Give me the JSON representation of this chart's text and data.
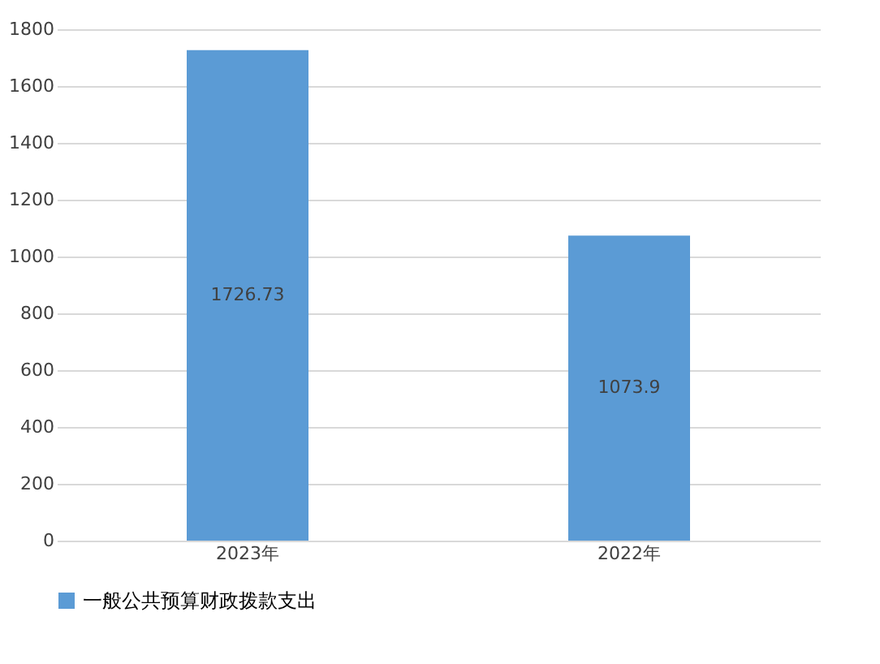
{
  "chart_data": {
    "type": "bar",
    "categories": [
      "2023年",
      "2022年"
    ],
    "series": [
      {
        "name": "一般公共预算财政拨款支出",
        "color": "#5b9bd5",
        "values": [
          1726.73,
          1073.9
        ]
      }
    ],
    "ylim": [
      0,
      1800
    ],
    "yticks": [
      0,
      200,
      400,
      600,
      800,
      1000,
      1200,
      1400,
      1600,
      1800
    ],
    "grid": "y",
    "legend": "bottom",
    "data_labels": true
  }
}
